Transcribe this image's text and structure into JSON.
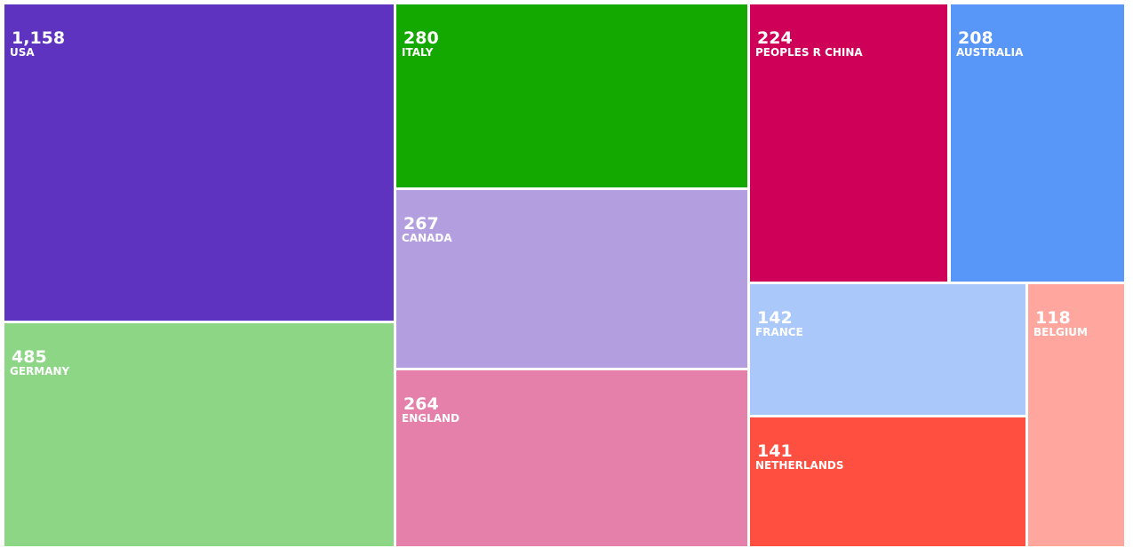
{
  "chart_data": {
    "type": "treemap",
    "categories": [
      "USA",
      "GERMANY",
      "ITALY",
      "CANADA",
      "ENGLAND",
      "PEOPLES R CHINA",
      "AUSTRALIA",
      "FRANCE",
      "NETHERLANDS",
      "BELGIUM"
    ],
    "values": [
      1158,
      485,
      280,
      267,
      264,
      224,
      208,
      142,
      141,
      118
    ],
    "value_labels": [
      "1,158",
      "485",
      "280",
      "267",
      "264",
      "224",
      "208",
      "142",
      "141",
      "118"
    ],
    "colors": [
      "#5e33bf",
      "#8dd685",
      "#14a900",
      "#b39fe0",
      "#e580ab",
      "#cf0058",
      "#5896f7",
      "#aac8fa",
      "#ff4f40",
      "#ffa69e"
    ]
  }
}
